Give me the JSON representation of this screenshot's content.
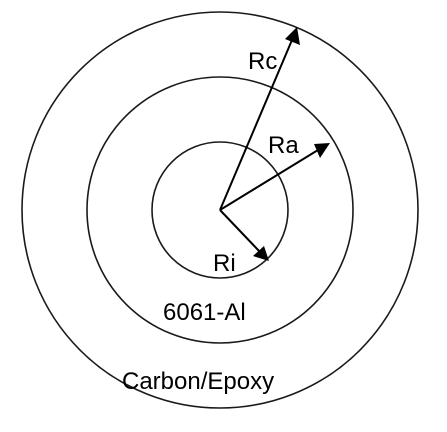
{
  "diagram": {
    "description_type": "concentric-circles",
    "regions": {
      "inner": "Ri",
      "middle_material": "6061-Al",
      "outer_material": "Carbon/Epoxy"
    },
    "radii_labels": {
      "inner": "Ri",
      "middle": "Ra",
      "outer": "Rc"
    },
    "colors": {
      "stroke": "#1a1a1a",
      "arrow": "#000000",
      "background": "#ffffff"
    }
  }
}
